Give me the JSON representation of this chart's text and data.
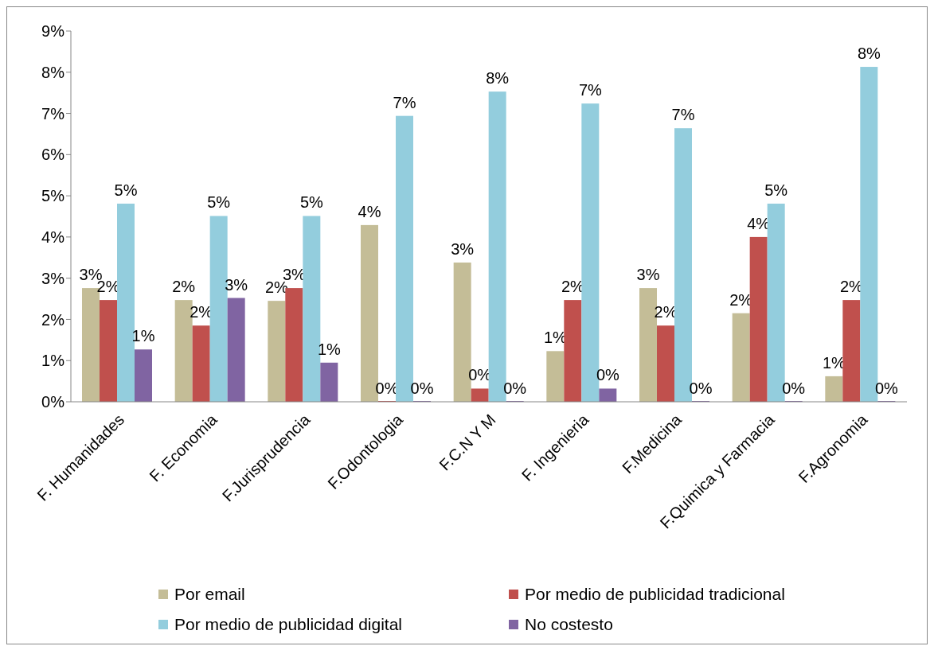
{
  "chart_data": {
    "type": "bar",
    "categories": [
      "F. Humanidades",
      "F. Economia",
      "F.Jurisprudencia",
      "F.Odontologia",
      "F.C.N Y M",
      "F. Ingenieria",
      "F.Medicina",
      "F.Quimica y Farmacia",
      "F.Agronomia"
    ],
    "series": [
      {
        "name": "Por email",
        "color": "#c4bd97",
        "values": [
          2.76,
          2.47,
          2.45,
          4.29,
          3.38,
          1.23,
          2.76,
          2.15,
          0.62
        ],
        "value_labels": [
          "3%",
          "2%",
          "2%",
          "4%",
          "3%",
          "1%",
          "3%",
          "2%",
          "1%"
        ]
      },
      {
        "name": "Por medio de publicidad tradicional",
        "color": "#c0504d",
        "values": [
          2.47,
          1.85,
          2.76,
          0,
          0.32,
          2.47,
          1.85,
          4.0,
          2.47
        ],
        "value_labels": [
          "2%",
          "2%",
          "3%",
          "0%",
          "0%",
          "2%",
          "2%",
          "4%",
          "2%"
        ]
      },
      {
        "name": "Por medio de publicidad digital",
        "color": "#93cddd",
        "values": [
          4.81,
          4.51,
          4.51,
          6.94,
          7.53,
          7.24,
          6.64,
          4.81,
          8.13
        ],
        "value_labels": [
          "5%",
          "5%",
          "5%",
          "7%",
          "8%",
          "7%",
          "7%",
          "5%",
          "8%"
        ]
      },
      {
        "name": "No costesto",
        "color": "#8064a2",
        "values": [
          1.27,
          2.52,
          0.95,
          0,
          0,
          0.32,
          0,
          0,
          0
        ],
        "value_labels": [
          "1%",
          "3%",
          "1%",
          "0%",
          "0%",
          "0%",
          "0%",
          "0%",
          "0%"
        ]
      }
    ],
    "ylim": [
      0,
      9
    ],
    "yticks": [
      {
        "value": 0,
        "label": "0%"
      },
      {
        "value": 1,
        "label": "1%"
      },
      {
        "value": 2,
        "label": "2%"
      },
      {
        "value": 3,
        "label": "3%"
      },
      {
        "value": 4,
        "label": "4%"
      },
      {
        "value": 5,
        "label": "5%"
      },
      {
        "value": 6,
        "label": "6%"
      },
      {
        "value": 7,
        "label": "7%"
      },
      {
        "value": 8,
        "label": "8%"
      },
      {
        "value": 9,
        "label": "9%"
      }
    ],
    "grid": false,
    "legend": "bottom"
  }
}
